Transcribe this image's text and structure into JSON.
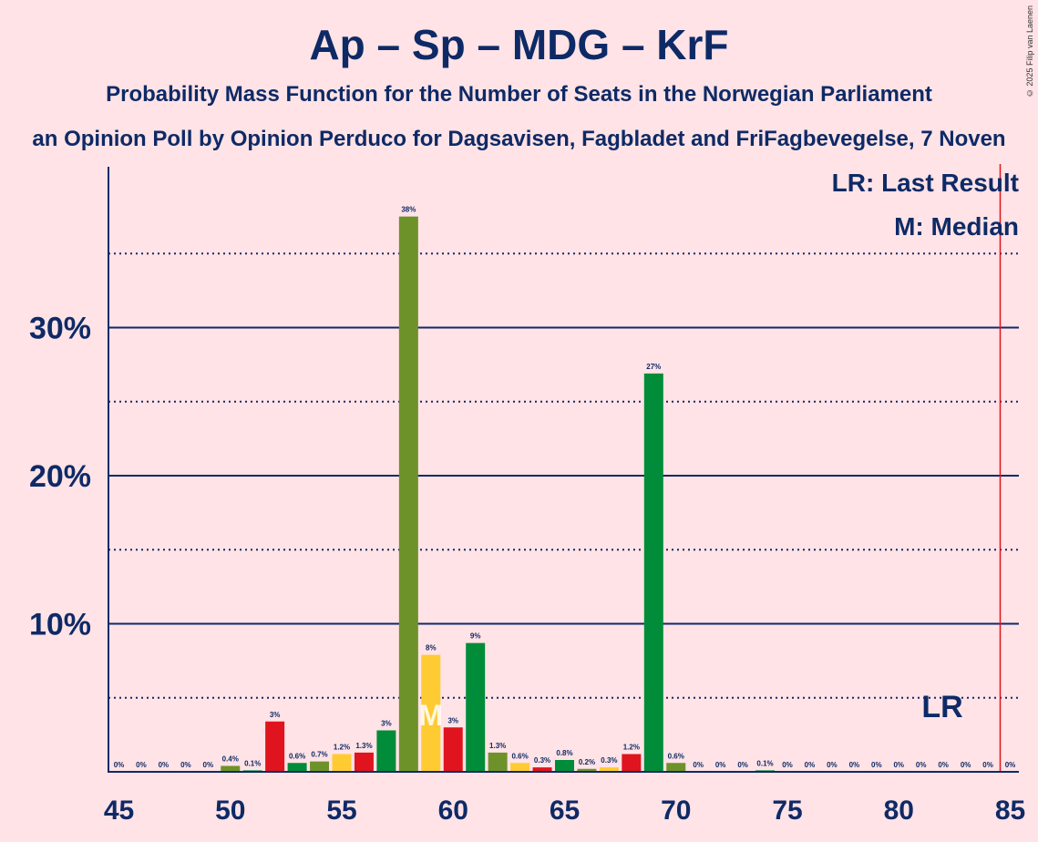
{
  "title": "Ap – Sp – MDG – KrF",
  "subtitle": "Probability Mass Function for the Number of Seats in the Norwegian Parliament",
  "source": "an Opinion Poll by Opinion Perduco for Dagsavisen, Fagbladet and FriFagbevegelse, 7 Noven",
  "copyright": "© 2025 Filip van Laenen",
  "legend": {
    "lr": "LR: Last Result",
    "m": "M: Median"
  },
  "markers": {
    "lr_label": "LR",
    "m_label": "M"
  },
  "colors": {
    "background": "#ffe3e6",
    "text": "#0e2a66",
    "red": "#e0141e",
    "yellow": "#ffcb33",
    "olive": "#6e922a",
    "green": "#008c38",
    "last_result_line": "#e0141e"
  },
  "chart_data": {
    "type": "bar",
    "x": [
      45,
      46,
      47,
      48,
      49,
      50,
      51,
      52,
      53,
      54,
      55,
      56,
      57,
      58,
      59,
      60,
      61,
      62,
      63,
      64,
      65,
      66,
      67,
      68,
      69,
      70,
      71,
      72,
      73,
      74,
      75,
      76,
      77,
      78,
      79,
      80,
      81,
      82,
      83,
      84,
      85
    ],
    "values": [
      0,
      0,
      0,
      0,
      0,
      0.4,
      0.1,
      3.4,
      0.6,
      0.7,
      1.2,
      1.3,
      2.8,
      37.5,
      7.9,
      3.0,
      8.7,
      1.3,
      0.6,
      0.3,
      0.8,
      0.2,
      0.3,
      1.2,
      26.9,
      0.6,
      0,
      0,
      0,
      0.1,
      0,
      0,
      0,
      0,
      0,
      0,
      0,
      0,
      0,
      0,
      0
    ],
    "labels": [
      "0%",
      "0%",
      "0%",
      "0%",
      "0%",
      "0.4%",
      "0.1%",
      "3%",
      "0.6%",
      "0.7%",
      "1.2%",
      "1.3%",
      "3%",
      "38%",
      "8%",
      "3%",
      "9%",
      "1.3%",
      "0.6%",
      "0.3%",
      "0.8%",
      "0.2%",
      "0.3%",
      "1.2%",
      "27%",
      "0.6%",
      "0%",
      "0%",
      "0%",
      "0.1%",
      "0%",
      "0%",
      "0%",
      "0%",
      "0%",
      "0%",
      "0%",
      "0%",
      "0%",
      "0%",
      "0%"
    ],
    "bar_colors": [
      "green",
      "green",
      "green",
      "green",
      "green",
      "olive",
      "green",
      "red",
      "green",
      "olive",
      "yellow",
      "red",
      "green",
      "olive",
      "yellow",
      "red",
      "green",
      "olive",
      "yellow",
      "red",
      "green",
      "olive",
      "yellow",
      "red",
      "green",
      "olive",
      "green",
      "green",
      "green",
      "green",
      "green",
      "green",
      "green",
      "green",
      "green",
      "green",
      "green",
      "green",
      "green",
      "green",
      "green"
    ],
    "xticks": [
      "45",
      "50",
      "55",
      "60",
      "65",
      "70",
      "75",
      "80",
      "85"
    ],
    "yticks": [
      "10%",
      "20%",
      "30%"
    ],
    "ylim": [
      0,
      40
    ],
    "xlim": [
      45,
      85
    ],
    "median": 59,
    "last_result": 85,
    "grid": true
  }
}
